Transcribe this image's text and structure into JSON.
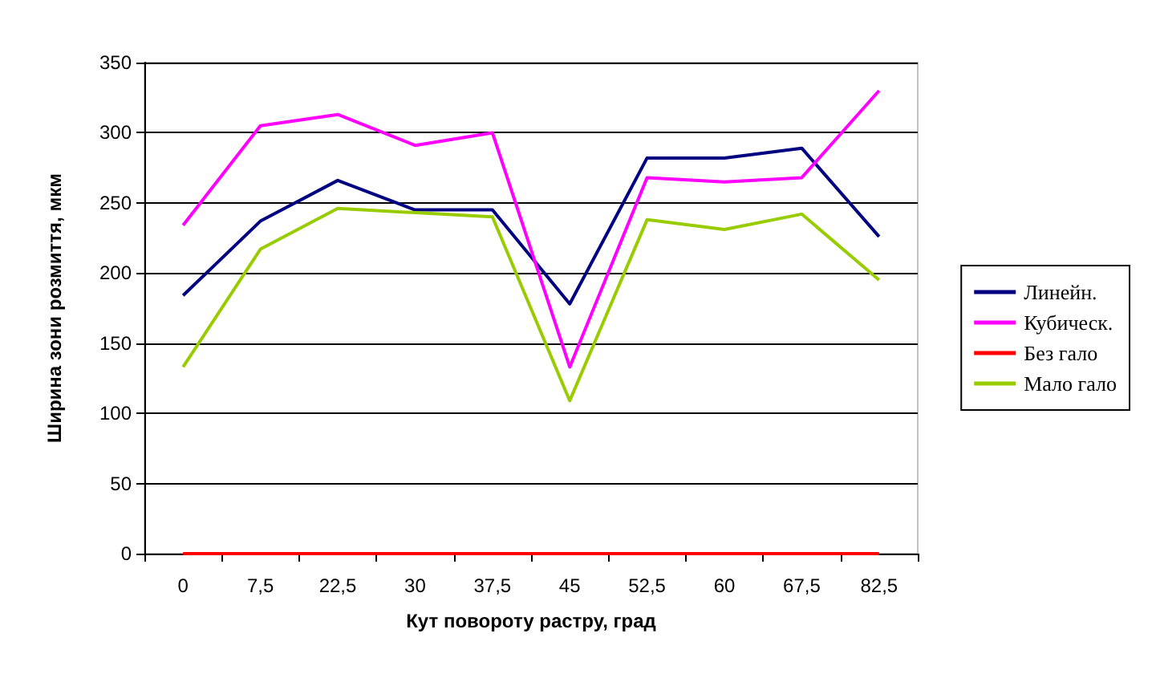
{
  "chart_data": {
    "type": "line",
    "xlabel": "Кут повороту растру, град",
    "ylabel": "Ширина зони розмиття, мкм",
    "categories": [
      "0",
      "7,5",
      "22,5",
      "30",
      "37,5",
      "45",
      "52,5",
      "60",
      "67,5",
      "82,5"
    ],
    "series": [
      {
        "name": "Линейн.",
        "color": "#000080",
        "values": [
          184,
          237,
          266,
          245,
          245,
          178,
          282,
          282,
          289,
          226
        ]
      },
      {
        "name": "Кубическ.",
        "color": "#ff00ff",
        "values": [
          234,
          305,
          313,
          291,
          300,
          133,
          268,
          265,
          268,
          330
        ]
      },
      {
        "name": "Без гало",
        "color": "#ff0000",
        "values": [
          0,
          0,
          0,
          0,
          0,
          0,
          0,
          0,
          0,
          0
        ]
      },
      {
        "name": "Мало гало",
        "color": "#99cc00",
        "values": [
          133,
          217,
          246,
          243,
          240,
          109,
          238,
          231,
          242,
          195
        ]
      }
    ],
    "ylim": [
      0,
      350
    ],
    "yticks": [
      0,
      50,
      100,
      150,
      200,
      250,
      300,
      350
    ],
    "grid": "y",
    "legend": "right",
    "marker": "none",
    "line_style": "solid"
  }
}
